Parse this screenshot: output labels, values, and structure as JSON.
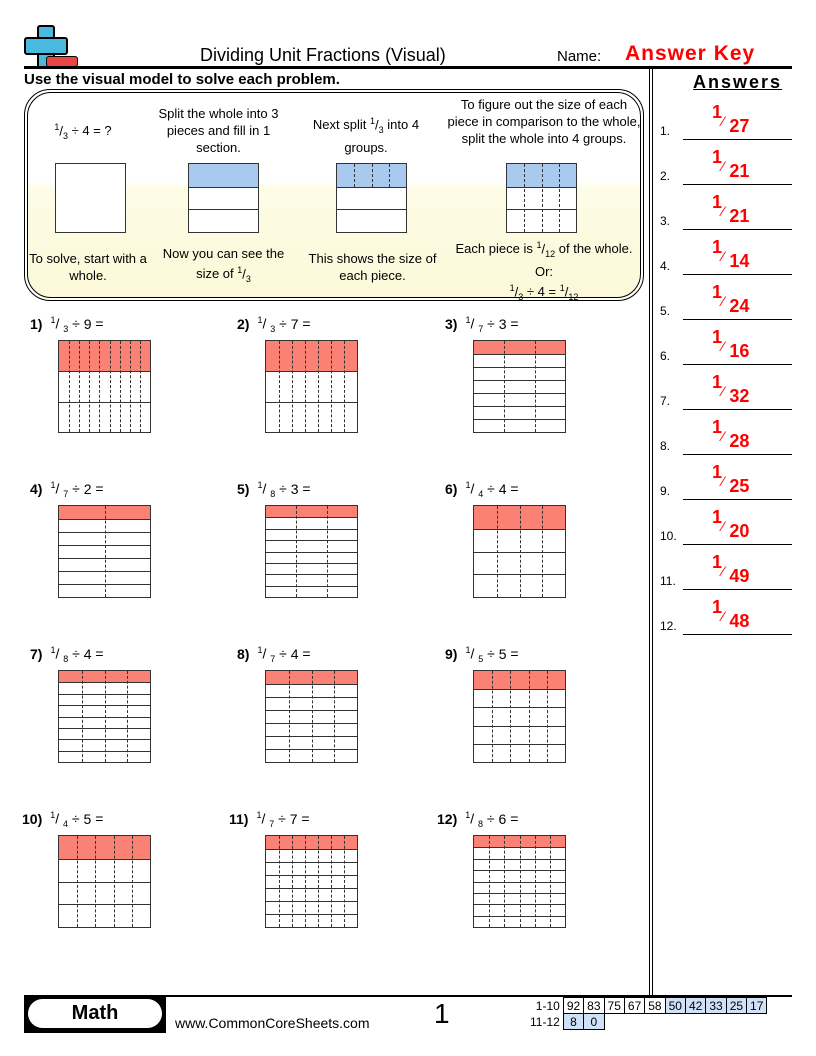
{
  "header": {
    "title": "Dividing Unit Fractions (Visual)",
    "name_label": "Name:",
    "name_value": "Answer Key"
  },
  "instructions": "Use the visual model to solve each problem.",
  "answers_title": "Answers",
  "example": {
    "step1_top": {
      "num": "1",
      "den": "3",
      "rest": "÷ 4 = ?"
    },
    "step1_bottom": "To solve, start with a whole.",
    "step2_top": "Split the whole into 3 pieces and fill in 1 section.",
    "step2_bottom": "Now you can see the size of",
    "step2_frac": {
      "num": "1",
      "den": "3"
    },
    "step3_top_a": "Next split",
    "step3_frac": {
      "num": "1",
      "den": "3"
    },
    "step3_top_b": "into 4 groups.",
    "step3_bottom": "This shows the size of each piece.",
    "step4_top": "To figure out the size of each piece in comparison to the whole, split the whole into 4 groups.",
    "step4_bottom_a": "Each piece is",
    "step4_frac": {
      "num": "1",
      "den": "12"
    },
    "step4_bottom_b": "of the whole.",
    "step4_or": "Or:",
    "step4_eq": {
      "n1": "1",
      "d1": "3",
      "mid": "÷ 4 =",
      "n2": "1",
      "d2": "12"
    },
    "colors": {
      "fill": "#a9c9ee"
    }
  },
  "problems": [
    {
      "label": "1)",
      "num": "1",
      "den": "3",
      "divisor": "9"
    },
    {
      "label": "2)",
      "num": "1",
      "den": "3",
      "divisor": "7"
    },
    {
      "label": "3)",
      "num": "1",
      "den": "7",
      "divisor": "3"
    },
    {
      "label": "4)",
      "num": "1",
      "den": "7",
      "divisor": "2"
    },
    {
      "label": "5)",
      "num": "1",
      "den": "8",
      "divisor": "3"
    },
    {
      "label": "6)",
      "num": "1",
      "den": "4",
      "divisor": "4"
    },
    {
      "label": "7)",
      "num": "1",
      "den": "8",
      "divisor": "4"
    },
    {
      "label": "8)",
      "num": "1",
      "den": "7",
      "divisor": "4"
    },
    {
      "label": "9)",
      "num": "1",
      "den": "5",
      "divisor": "5"
    },
    {
      "label": "10)",
      "num": "1",
      "den": "4",
      "divisor": "5"
    },
    {
      "label": "11)",
      "num": "1",
      "den": "7",
      "divisor": "7"
    },
    {
      "label": "12)",
      "num": "1",
      "den": "8",
      "divisor": "6"
    }
  ],
  "problem_fill_color": "#f98274",
  "answers": [
    {
      "n": "1.",
      "num": "1",
      "den": "27"
    },
    {
      "n": "2.",
      "num": "1",
      "den": "21"
    },
    {
      "n": "3.",
      "num": "1",
      "den": "21"
    },
    {
      "n": "4.",
      "num": "1",
      "den": "14"
    },
    {
      "n": "5.",
      "num": "1",
      "den": "24"
    },
    {
      "n": "6.",
      "num": "1",
      "den": "16"
    },
    {
      "n": "7.",
      "num": "1",
      "den": "32"
    },
    {
      "n": "8.",
      "num": "1",
      "den": "28"
    },
    {
      "n": "9.",
      "num": "1",
      "den": "25"
    },
    {
      "n": "10.",
      "num": "1",
      "den": "20"
    },
    {
      "n": "11.",
      "num": "1",
      "den": "49"
    },
    {
      "n": "12.",
      "num": "1",
      "den": "48"
    }
  ],
  "footer": {
    "subject": "Math",
    "site": "www.CommonCoreSheets.com",
    "page": "1",
    "score_rows": [
      {
        "label": "1-10",
        "values": [
          "92",
          "83",
          "75",
          "67",
          "58",
          "50",
          "42",
          "33",
          "25",
          "17"
        ],
        "blue_from": 5
      },
      {
        "label": "11-12",
        "values": [
          "8",
          "0"
        ],
        "blue_from": 0
      }
    ]
  }
}
